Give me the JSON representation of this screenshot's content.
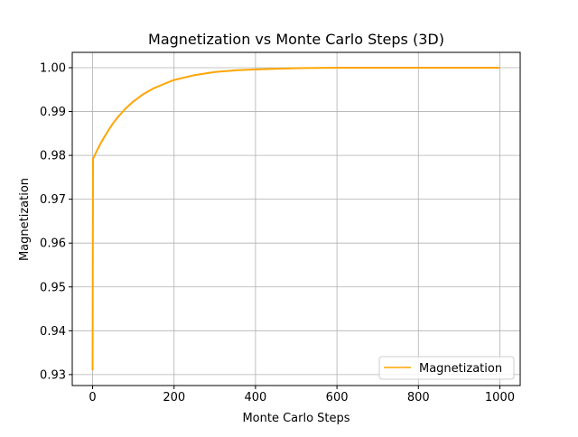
{
  "chart_data": {
    "type": "line",
    "title": "Magnetization vs Monte Carlo Steps (3D)",
    "xlabel": "Monte Carlo Steps",
    "ylabel": "Magnetization",
    "xlim": [
      -50,
      1050
    ],
    "ylim": [
      0.9275,
      1.0035
    ],
    "xticks": [
      0,
      200,
      400,
      600,
      800,
      1000
    ],
    "xtick_labels": [
      "0",
      "200",
      "400",
      "600",
      "800",
      "1000"
    ],
    "yticks": [
      0.93,
      0.94,
      0.95,
      0.96,
      0.97,
      0.98,
      0.99,
      1.0
    ],
    "ytick_labels": [
      "0.93",
      "0.94",
      "0.95",
      "0.96",
      "0.97",
      "0.98",
      "0.99",
      "1.00"
    ],
    "grid": true,
    "legend": "lower-right",
    "series": [
      {
        "name": "Magnetization",
        "color": "#ffa500",
        "x": [
          0,
          1,
          10,
          20,
          30,
          40,
          50,
          60,
          80,
          100,
          125,
          150,
          175,
          200,
          250,
          300,
          350,
          400,
          500,
          600,
          800,
          1000
        ],
        "y": [
          0.931,
          0.9792,
          0.981,
          0.9828,
          0.9844,
          0.9859,
          0.9873,
          0.9885,
          0.9906,
          0.9923,
          0.994,
          0.9953,
          0.9963,
          0.9972,
          0.9983,
          0.999,
          0.9994,
          0.9996,
          0.9999,
          1.0,
          1.0,
          1.0
        ]
      }
    ]
  }
}
